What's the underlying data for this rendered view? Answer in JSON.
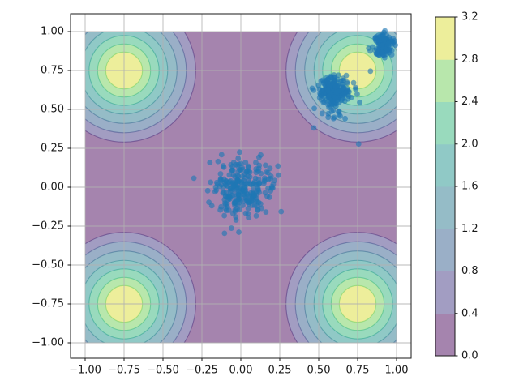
{
  "chart_data": {
    "type": "contour+scatter",
    "title": "",
    "xlabel": "",
    "ylabel": "",
    "xlim": [
      -1.094,
      1.094
    ],
    "ylim": [
      -1.099,
      1.115
    ],
    "grid": true,
    "grid_color": "#b0b0b0",
    "x_ticks": {
      "values": [
        -1.0,
        -0.75,
        -0.5,
        -0.25,
        0.0,
        0.25,
        0.5,
        0.75,
        1.0
      ],
      "labels": [
        "−1.00",
        "−0.75",
        "−0.50",
        "−0.25",
        "0.00",
        "0.25",
        "0.50",
        "0.75",
        "1.00"
      ]
    },
    "y_ticks": {
      "values": [
        -1.0,
        -0.75,
        -0.5,
        -0.25,
        0.0,
        0.25,
        0.5,
        0.75,
        1.0
      ],
      "labels": [
        "−1.00",
        "−0.75",
        "−0.50",
        "−0.25",
        "0.00",
        "0.25",
        "0.50",
        "0.75",
        "1.00"
      ]
    },
    "contour": {
      "colormap": "viridis",
      "alpha": 0.5,
      "data_extent": [
        -1,
        1,
        -1,
        1
      ],
      "levels": [
        0.0,
        0.4,
        0.8,
        1.2,
        1.6,
        2.0,
        2.4,
        2.8,
        3.2
      ],
      "background_color": "#a584ae",
      "gaussian_centers": [
        [
          -0.75,
          0.75
        ],
        [
          0.75,
          0.75
        ],
        [
          -0.75,
          -0.75
        ],
        [
          0.75,
          -0.75
        ]
      ],
      "ring_radii": [
        0.46,
        0.4,
        0.34,
        0.28,
        0.225,
        0.17,
        0.118
      ],
      "ring_fill_colors": [
        "#a29dc2",
        "#9aafc7",
        "#95bcc7",
        "#90c9c6",
        "#99dabd",
        "#b8e7ac",
        "#edee9b"
      ],
      "ring_line_colors": [
        "#482878",
        "#3e4c8a",
        "#31688e",
        "#26828e",
        "#1f9e89",
        "#35b779",
        "#6ece58"
      ],
      "line_opacity": 0.5
    },
    "colorbar": {
      "tick_labels": [
        "0.0",
        "0.4",
        "0.8",
        "1.2",
        "1.6",
        "2.0",
        "2.4",
        "2.8",
        "3.2"
      ],
      "band_colors": [
        "#a584ae",
        "#a29dc2",
        "#9aafc7",
        "#95bcc7",
        "#90c9c6",
        "#99dabd",
        "#b8e7ac",
        "#edee9b"
      ],
      "vmin": 0.0,
      "vmax": 3.2
    },
    "scatter": {
      "color": "#1f77b4",
      "opacity": 0.62,
      "marker_radius_px": 3.4,
      "clusters": [
        {
          "cx": 0.01,
          "cy": 0.0,
          "sigma": 0.095,
          "n": 260,
          "seed": 42
        },
        {
          "cx": 0.6,
          "cy": 0.62,
          "sigma": 0.045,
          "n": 230,
          "seed": 7
        },
        {
          "cx": 0.62,
          "cy": 0.58,
          "sigma": 0.09,
          "n": 40,
          "seed": 99
        },
        {
          "cx": 0.91,
          "cy": 0.91,
          "sigma": 0.032,
          "n": 150,
          "seed": 13
        }
      ]
    }
  }
}
